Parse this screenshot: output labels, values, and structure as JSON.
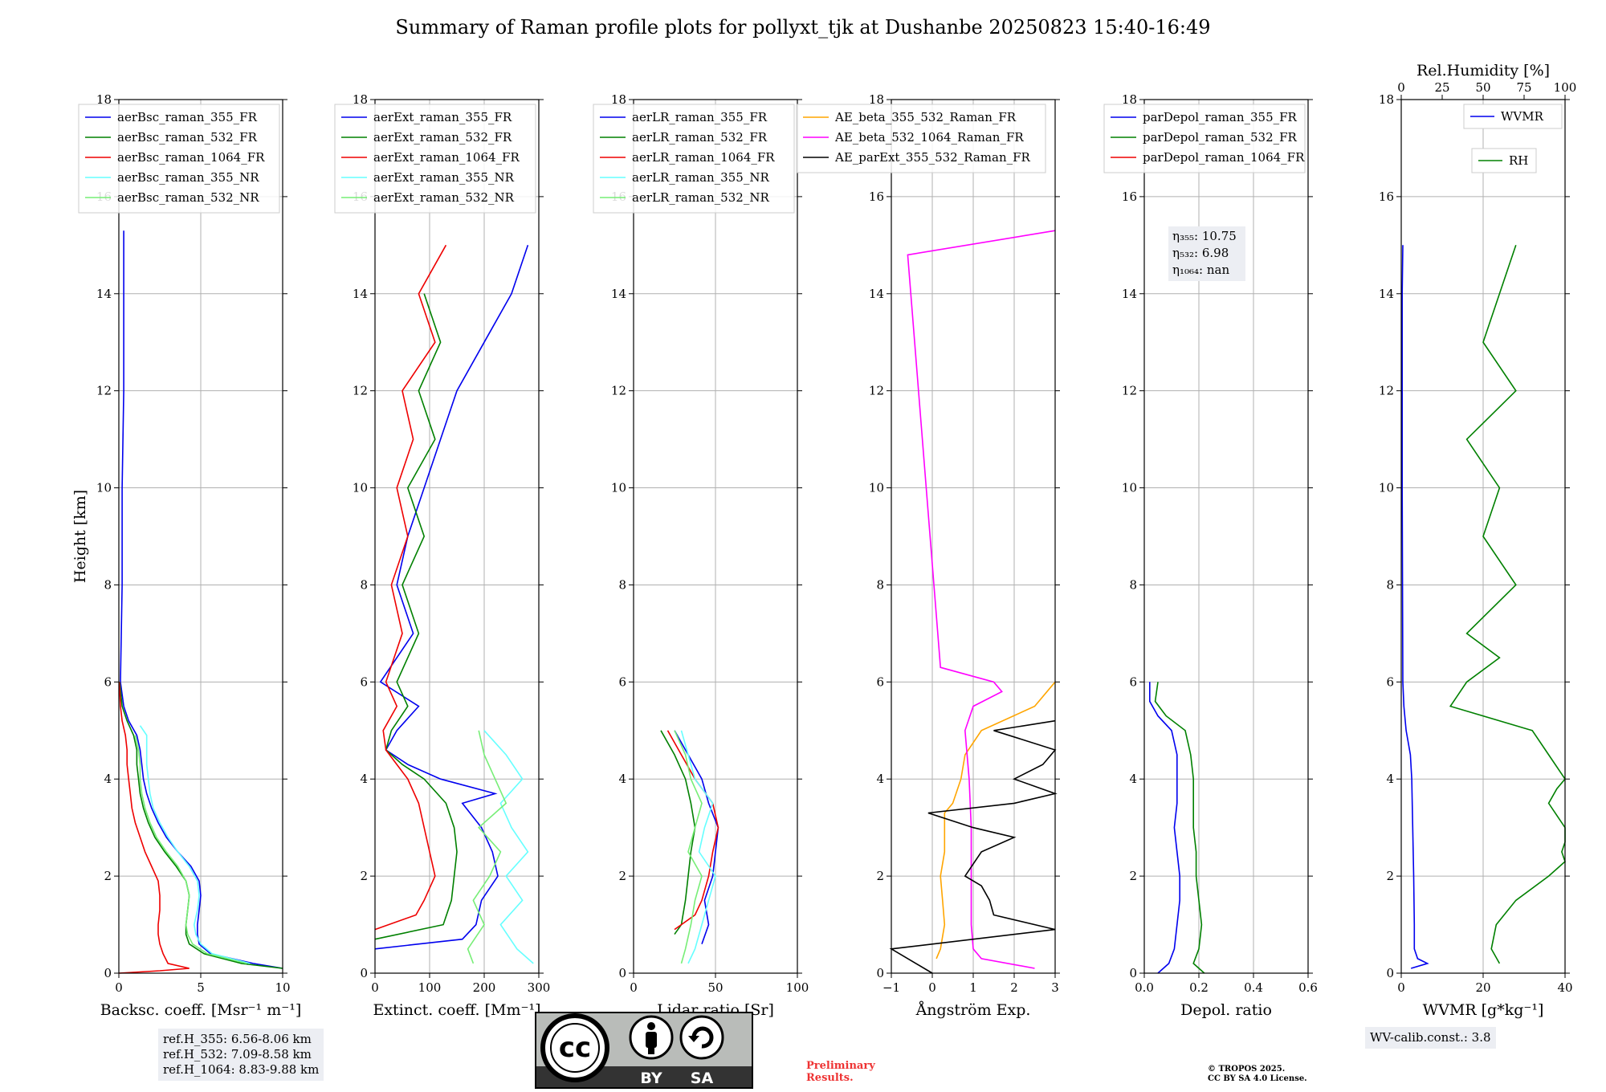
{
  "title": "Summary of Raman profile plots for pollyxt_tjk at Dushanbe 20250823 15:40-16:49",
  "colors": {
    "blue": "#0000ee",
    "green": "#008000",
    "red": "#ee0000",
    "cyan": "#66ffff",
    "lightgreen": "#77ee77",
    "orange": "#ffa500",
    "magenta": "#ff00ff",
    "black": "#000000",
    "grid": "#b0b0b0"
  },
  "y_axis": {
    "label": "Height [km]",
    "ylim": [
      0,
      18
    ],
    "ticks": [
      "0",
      "2",
      "4",
      "6",
      "8",
      "10",
      "12",
      "14",
      "16",
      "18"
    ]
  },
  "chart_data": [
    {
      "type": "line",
      "id": "backscatter",
      "xlabel": "Backsc. coeff. [Msr⁻¹ m⁻¹]",
      "xlim": [
        0,
        10
      ],
      "xticks": [
        "0",
        "5",
        "10"
      ],
      "ylabel": "Height [km]",
      "ylim": [
        0,
        18
      ],
      "grid": true,
      "legend_position": "top-left",
      "series": [
        {
          "name": "aerBsc_raman_355_FR",
          "color": "blue",
          "y": [
            0.1,
            0.2,
            0.4,
            0.6,
            0.8,
            1.0,
            1.3,
            1.6,
            1.9,
            2.2,
            2.5,
            2.8,
            3.1,
            3.4,
            3.7,
            4.0,
            4.3,
            4.6,
            4.9,
            5.2,
            5.5,
            6.0,
            8.0,
            10.0,
            12.0,
            14.0,
            15.3
          ],
          "x": [
            10.0,
            8.2,
            5.6,
            4.9,
            4.8,
            4.8,
            4.9,
            5.0,
            4.9,
            4.4,
            3.6,
            2.9,
            2.4,
            2.0,
            1.7,
            1.5,
            1.4,
            1.3,
            1.1,
            0.6,
            0.3,
            0.1,
            0.2,
            0.2,
            0.3,
            0.3,
            0.3
          ]
        },
        {
          "name": "aerBsc_raman_532_FR",
          "color": "green",
          "y": [
            0.1,
            0.2,
            0.4,
            0.6,
            0.8,
            1.0,
            1.3,
            1.6,
            1.9,
            2.2,
            2.5,
            2.8,
            3.1,
            3.4,
            3.7,
            4.0,
            4.3,
            4.6,
            4.9,
            5.2,
            5.5,
            6.0
          ],
          "x": [
            10.0,
            7.5,
            5.2,
            4.3,
            4.1,
            4.1,
            4.2,
            4.3,
            4.1,
            3.5,
            2.8,
            2.2,
            1.8,
            1.5,
            1.3,
            1.2,
            1.1,
            1.1,
            0.9,
            0.5,
            0.2,
            0.05
          ]
        },
        {
          "name": "aerBsc_raman_1064_FR",
          "color": "red",
          "y": [
            0.0,
            0.05,
            0.1,
            0.2,
            0.4,
            0.6,
            0.8,
            1.0,
            1.3,
            1.6,
            1.9,
            2.2,
            2.5,
            2.8,
            3.1,
            3.4,
            3.7,
            4.0,
            4.3,
            4.6,
            4.9,
            5.2,
            5.5,
            6.0
          ],
          "x": [
            0.0,
            2.5,
            4.3,
            3.0,
            2.7,
            2.5,
            2.4,
            2.4,
            2.5,
            2.5,
            2.4,
            2.0,
            1.6,
            1.3,
            1.0,
            0.8,
            0.7,
            0.6,
            0.5,
            0.5,
            0.4,
            0.2,
            0.1,
            0.03
          ]
        },
        {
          "name": "aerBsc_raman_355_NR",
          "color": "cyan",
          "y": [
            0.2,
            0.4,
            0.6,
            0.8,
            1.0,
            1.3,
            1.6,
            1.9,
            2.2,
            2.5,
            2.8,
            3.1,
            3.4,
            3.7,
            4.0,
            4.3,
            4.6,
            4.9,
            5.1
          ],
          "x": [
            8.0,
            5.7,
            5.0,
            4.7,
            4.6,
            4.8,
            4.9,
            4.8,
            4.3,
            3.6,
            3.0,
            2.5,
            2.1,
            1.9,
            1.8,
            1.7,
            1.7,
            1.7,
            1.3
          ]
        },
        {
          "name": "aerBsc_raman_532_NR",
          "color": "lightgreen",
          "y": [
            0.2,
            0.4,
            0.6,
            0.8,
            1.0,
            1.3,
            1.6,
            1.9,
            2.2,
            2.5,
            2.8,
            3.1,
            3.4,
            3.7,
            4.0,
            4.3,
            4.6,
            4.9
          ],
          "x": [
            7.8,
            5.4,
            4.5,
            4.2,
            4.1,
            4.2,
            4.3,
            4.1,
            3.6,
            2.9,
            2.3,
            1.9,
            1.6,
            1.4,
            1.3,
            1.3,
            1.2,
            1.0
          ]
        }
      ]
    },
    {
      "type": "line",
      "id": "extinction",
      "xlabel": "Extinct. coeff. [Mm⁻¹]",
      "xlim": [
        0,
        300
      ],
      "xticks": [
        "0",
        "100",
        "200",
        "300"
      ],
      "ylabel": "Height [km]",
      "ylim": [
        0,
        18
      ],
      "grid": true,
      "legend_position": "top-left",
      "series": [
        {
          "name": "aerExt_raman_355_FR",
          "color": "blue",
          "y": [
            0.5,
            0.7,
            1.0,
            1.5,
            2.0,
            2.5,
            3.0,
            3.5,
            3.7,
            4.0,
            4.3,
            4.6,
            5.0,
            5.5,
            6.0,
            7.0,
            8.0,
            9.0,
            10.0,
            11.0,
            12.0,
            13.0,
            14.0,
            15.0
          ],
          "x": [
            0,
            160,
            185,
            195,
            225,
            215,
            195,
            160,
            220,
            120,
            60,
            20,
            40,
            80,
            10,
            70,
            40,
            60,
            90,
            120,
            150,
            200,
            250,
            280
          ]
        },
        {
          "name": "aerExt_raman_532_FR",
          "color": "green",
          "y": [
            0.7,
            1.0,
            1.5,
            2.0,
            2.5,
            3.0,
            3.5,
            4.0,
            4.3,
            4.6,
            5.0,
            5.5,
            6.0,
            7.0,
            8.0,
            9.0,
            10.0,
            11.0,
            12.0,
            13.0,
            14.0
          ],
          "x": [
            0,
            125,
            140,
            145,
            150,
            145,
            130,
            90,
            50,
            20,
            30,
            60,
            40,
            80,
            50,
            90,
            60,
            110,
            80,
            120,
            90
          ]
        },
        {
          "name": "aerExt_raman_1064_FR",
          "color": "red",
          "y": [
            0.9,
            1.2,
            1.5,
            2.0,
            2.5,
            3.0,
            3.5,
            4.0,
            4.3,
            4.6,
            5.0,
            5.5,
            6.0,
            7.0,
            8.0,
            9.0,
            10.0,
            11.0,
            12.0,
            13.0,
            14.0,
            15.0
          ],
          "x": [
            0,
            75,
            90,
            110,
            100,
            90,
            80,
            60,
            40,
            20,
            15,
            40,
            20,
            50,
            30,
            60,
            40,
            70,
            50,
            110,
            80,
            130
          ]
        },
        {
          "name": "aerExt_raman_355_NR",
          "color": "cyan",
          "y": [
            0.2,
            0.5,
            1.0,
            1.5,
            2.0,
            2.5,
            3.0,
            3.5,
            4.0,
            4.5,
            5.0
          ],
          "x": [
            290,
            260,
            230,
            270,
            240,
            280,
            250,
            230,
            270,
            240,
            200
          ]
        },
        {
          "name": "aerExt_raman_532_NR",
          "color": "lightgreen",
          "y": [
            0.2,
            0.5,
            1.0,
            1.5,
            2.0,
            2.5,
            3.0,
            3.5,
            4.0,
            4.5,
            5.0
          ],
          "x": [
            180,
            170,
            200,
            180,
            210,
            230,
            190,
            240,
            220,
            200,
            190
          ]
        }
      ]
    },
    {
      "type": "line",
      "id": "lidar_ratio",
      "xlabel": "Lidar ratio [Sr]",
      "xlim": [
        0,
        120
      ],
      "xticks": [
        "0",
        "50",
        "100"
      ],
      "ylabel": "Height [km]",
      "ylim": [
        0,
        18
      ],
      "grid": true,
      "legend_position": "top-left",
      "series": [
        {
          "name": "aerLR_raman_355_FR",
          "color": "blue",
          "y": [
            0.6,
            1.0,
            1.5,
            2.0,
            2.5,
            3.0,
            3.5,
            4.0,
            4.5,
            5.0
          ],
          "x": [
            50,
            55,
            52,
            58,
            60,
            62,
            55,
            50,
            40,
            30
          ]
        },
        {
          "name": "aerLR_raman_532_FR",
          "color": "green",
          "y": [
            0.8,
            1.0,
            1.5,
            2.0,
            2.5,
            3.0,
            3.5,
            4.0,
            4.5,
            5.0
          ],
          "x": [
            30,
            35,
            38,
            40,
            42,
            45,
            42,
            38,
            30,
            20
          ]
        },
        {
          "name": "aerLR_raman_1064_FR",
          "color": "red",
          "y": [
            0.9,
            1.2,
            1.5,
            2.0,
            2.5,
            3.0,
            3.5,
            4.0,
            4.5,
            5.0
          ],
          "x": [
            30,
            45,
            50,
            55,
            58,
            62,
            58,
            45,
            35,
            25
          ]
        },
        {
          "name": "aerLR_raman_355_NR",
          "color": "cyan",
          "y": [
            0.2,
            0.5,
            1.0,
            1.5,
            2.0,
            2.5,
            3.0,
            3.5,
            4.0,
            4.5,
            5.0
          ],
          "x": [
            40,
            45,
            50,
            55,
            60,
            48,
            52,
            58,
            45,
            40,
            35
          ]
        },
        {
          "name": "aerLR_raman_532_NR",
          "color": "lightgreen",
          "y": [
            0.2,
            0.5,
            1.0,
            1.5,
            2.0,
            2.5,
            3.0,
            3.5,
            4.0,
            4.5,
            5.0
          ],
          "x": [
            35,
            38,
            42,
            45,
            50,
            40,
            45,
            50,
            42,
            38,
            30
          ]
        }
      ]
    },
    {
      "type": "line",
      "id": "angstrom",
      "xlabel": "Ångström Exp.",
      "xlim": [
        -1,
        3
      ],
      "xticks": [
        "−1",
        "0",
        "1",
        "2",
        "3"
      ],
      "ylabel": "Height [km]",
      "ylim": [
        0,
        18
      ],
      "grid": true,
      "legend_position": "top",
      "series": [
        {
          "name": "AE_beta_355_532_Raman_FR",
          "color": "orange",
          "y": [
            0.3,
            0.5,
            1.0,
            1.5,
            2.0,
            2.5,
            3.0,
            3.3,
            3.5,
            4.0,
            4.5,
            5.0,
            5.5,
            6.0
          ],
          "x": [
            0.1,
            0.2,
            0.3,
            0.25,
            0.2,
            0.3,
            0.3,
            0.3,
            0.5,
            0.7,
            0.8,
            1.2,
            2.5,
            3.0
          ]
        },
        {
          "name": "AE_beta_532_1064_Raman_FR",
          "color": "magenta",
          "y": [
            0.1,
            0.3,
            0.5,
            1.0,
            2.0,
            3.0,
            4.0,
            5.0,
            5.5,
            5.8,
            6.0,
            6.3,
            14.8,
            15.3
          ],
          "x": [
            2.5,
            1.2,
            1.0,
            0.95,
            0.95,
            0.95,
            0.9,
            0.8,
            1.0,
            1.7,
            1.5,
            0.2,
            -0.6,
            3.0
          ]
        },
        {
          "name": "AE_parExt_355_532_Raman_FR",
          "color": "black",
          "y": [
            0.0,
            0.5,
            0.9,
            1.2,
            1.5,
            1.8,
            2.0,
            2.5,
            2.8,
            3.0,
            3.3,
            3.5,
            3.7,
            4.0,
            4.3,
            4.6,
            5.0,
            5.2
          ],
          "x": [
            0.0,
            -1.0,
            3.0,
            1.5,
            1.4,
            1.2,
            0.8,
            1.2,
            2.0,
            1.0,
            -0.1,
            2.0,
            3.0,
            2.0,
            2.7,
            3.0,
            1.5,
            3.0
          ]
        }
      ]
    },
    {
      "type": "line",
      "id": "depol",
      "xlabel": "Depol. ratio",
      "xlim": [
        0,
        0.6
      ],
      "xticks": [
        "0.0",
        "0.2",
        "0.4",
        "0.6"
      ],
      "ylabel": "Height [km]",
      "ylim": [
        0,
        18
      ],
      "grid": true,
      "legend_position": "top-left",
      "annotations": [
        "η₃₅₅: 10.75",
        "η₅₃₂: 6.98",
        "η₁₀₆₄: nan"
      ],
      "series": [
        {
          "name": "parDepol_raman_355_FR",
          "color": "blue",
          "y": [
            0.0,
            0.2,
            0.5,
            1.0,
            1.5,
            2.0,
            2.5,
            3.0,
            3.5,
            4.0,
            4.5,
            5.0,
            5.3,
            5.6,
            6.0
          ],
          "x": [
            0.05,
            0.09,
            0.11,
            0.12,
            0.13,
            0.13,
            0.12,
            0.11,
            0.12,
            0.12,
            0.12,
            0.1,
            0.05,
            0.02,
            0.02
          ]
        },
        {
          "name": "parDepol_raman_532_FR",
          "color": "green",
          "y": [
            0.0,
            0.2,
            0.5,
            1.0,
            1.5,
            2.0,
            2.5,
            3.0,
            3.5,
            4.0,
            4.5,
            5.0,
            5.3,
            5.6,
            6.0
          ],
          "x": [
            0.22,
            0.18,
            0.2,
            0.21,
            0.2,
            0.19,
            0.19,
            0.18,
            0.18,
            0.18,
            0.17,
            0.15,
            0.08,
            0.04,
            0.05
          ]
        },
        {
          "name": "parDepol_raman_1064_FR",
          "color": "red",
          "y": [],
          "x": []
        }
      ]
    },
    {
      "type": "line",
      "id": "wvmr_rh",
      "xlabel": "WVMR [g*kg⁻¹]",
      "xlim": [
        0,
        50
      ],
      "xticks": [
        "0",
        "20",
        "40"
      ],
      "x2label": "Rel.Humidity [%]",
      "x2lim": [
        0,
        100
      ],
      "x2ticks": [
        "0",
        "25",
        "50",
        "75",
        "100"
      ],
      "ylabel": "Height [km]",
      "ylim": [
        0,
        18
      ],
      "grid": true,
      "legend_position": "top-right",
      "series": [
        {
          "name": "WVMR",
          "color": "blue",
          "y": [
            0.1,
            0.2,
            0.3,
            0.5,
            1.0,
            2.0,
            3.0,
            4.0,
            4.5,
            5.0,
            5.5,
            6.0,
            8.0,
            10.0,
            12.0,
            14.0,
            15.0
          ],
          "x": [
            3,
            8,
            5,
            4,
            4,
            3.8,
            3.5,
            3.2,
            2.8,
            1.5,
            0.8,
            0.5,
            0.4,
            0.3,
            0.3,
            0.3,
            0.5
          ]
        },
        {
          "name": "RH",
          "color": "green",
          "axis": "x2",
          "y": [
            0.2,
            0.5,
            1.0,
            1.5,
            2.0,
            2.3,
            2.5,
            2.7,
            3.0,
            3.5,
            3.8,
            4.0,
            4.5,
            5.0,
            5.5,
            6.0,
            6.5,
            7.0,
            8.0,
            9.0,
            10.0,
            11.0,
            12.0,
            13.0,
            14.0,
            15.0
          ],
          "x": [
            60,
            55,
            58,
            70,
            90,
            100,
            98,
            100,
            100,
            90,
            95,
            100,
            90,
            80,
            30,
            40,
            60,
            40,
            70,
            50,
            60,
            40,
            70,
            50,
            60,
            70
          ]
        }
      ]
    }
  ],
  "ref_box": [
    "ref.H_355: 6.56-8.06 km",
    "ref.H_532: 7.09-8.58 km",
    "ref.H_1064: 8.83-9.88 km"
  ],
  "wv_box": "WV-calib.const.: 3.8",
  "preliminary": [
    "Preliminary",
    "Results."
  ],
  "copyright": [
    "© TROPOS 2025.",
    "CC BY SA 4.0 License."
  ],
  "cc_logo": {
    "cc": "cc",
    "by": "BY",
    "sa": "SA"
  }
}
